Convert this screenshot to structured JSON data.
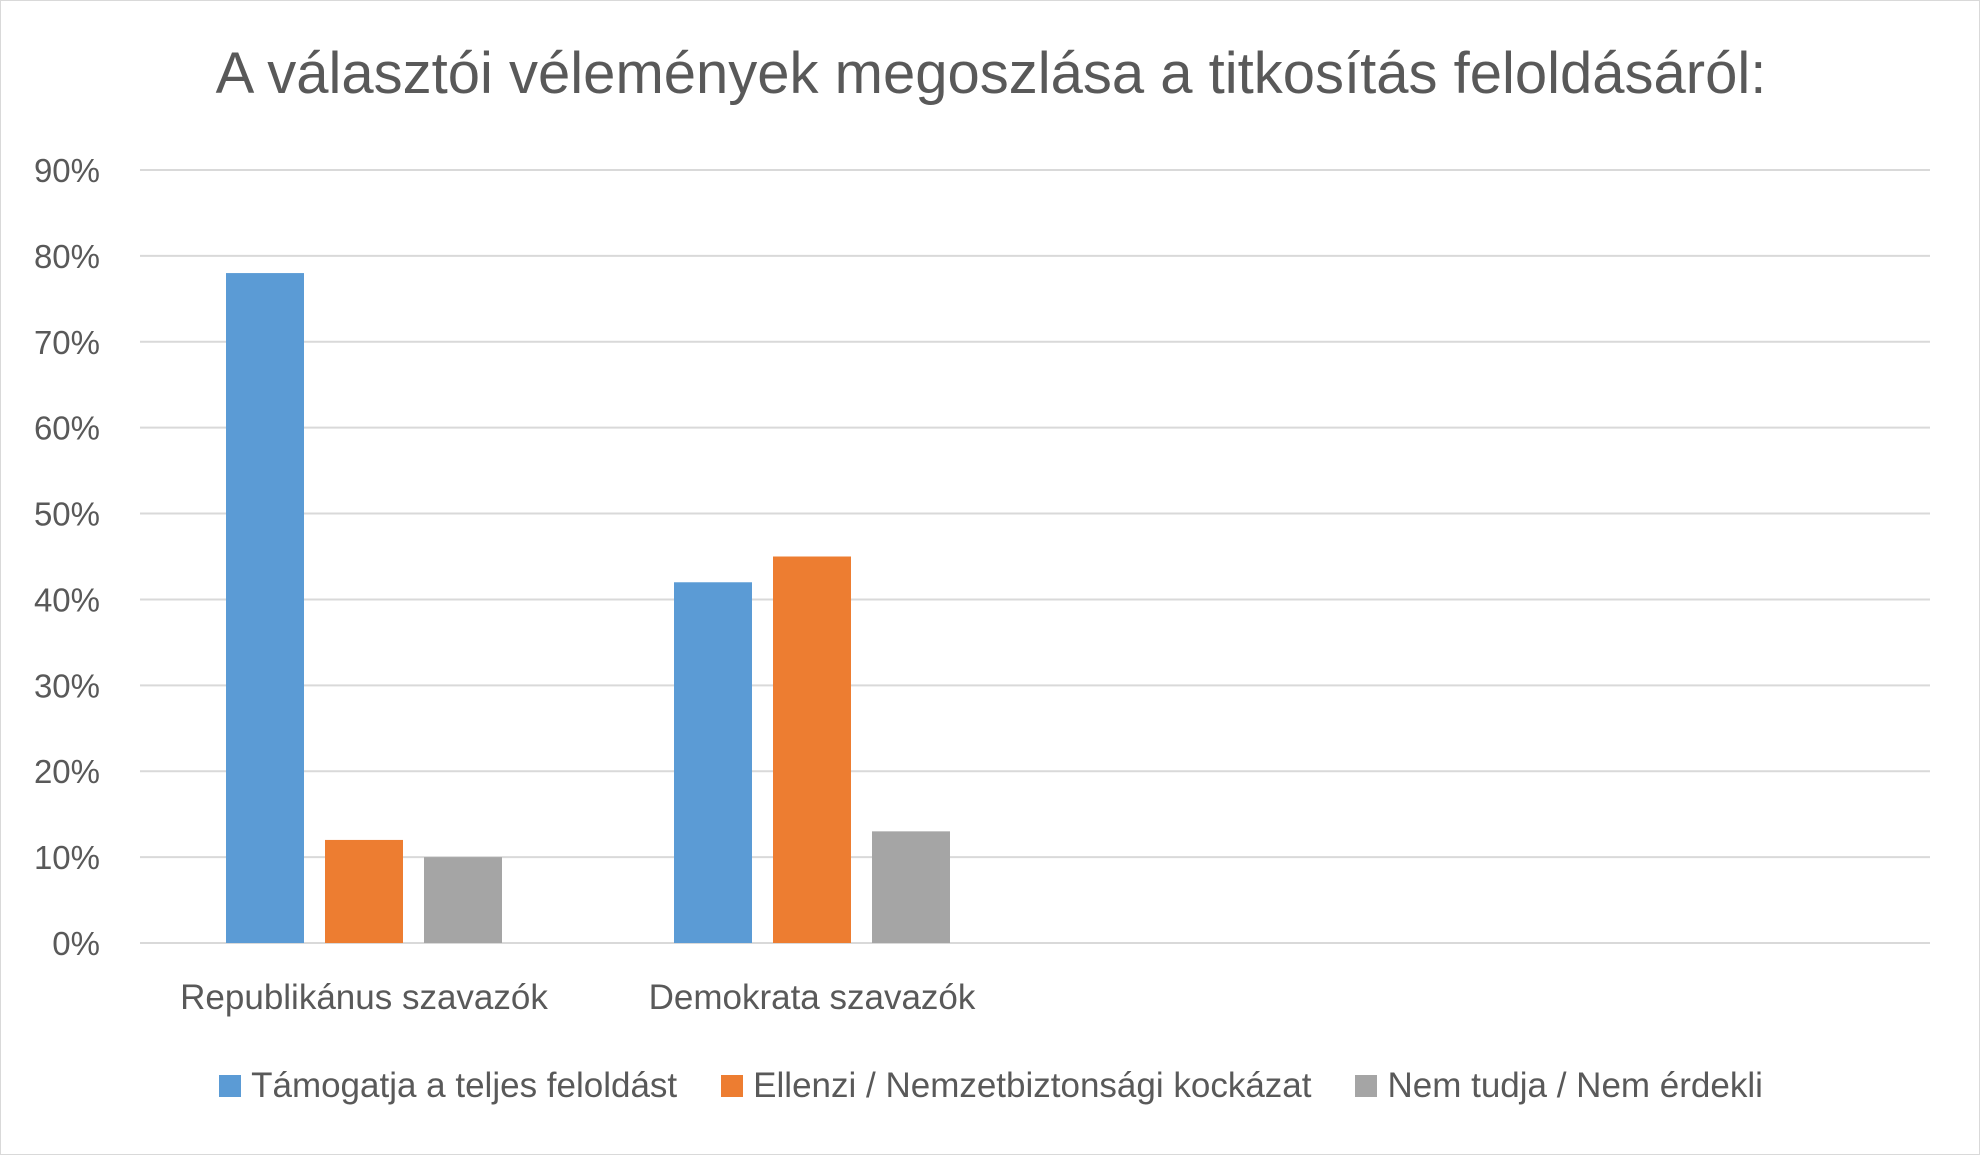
{
  "chart_data": {
    "type": "bar",
    "title": "A választói vélemények megoszlása a titkosítás feloldásáról:",
    "categories": [
      "Republikánus szavazók",
      "Demokrata szavazók"
    ],
    "series": [
      {
        "name": "Támogatja a teljes feloldást",
        "values": [
          78,
          42
        ],
        "color": "#5b9bd5"
      },
      {
        "name": "Ellenzi / Nemzetbiztonsági kockázat",
        "values": [
          12,
          45
        ],
        "color": "#ed7d31"
      },
      {
        "name": "Nem tudja / Nem érdekli",
        "values": [
          10,
          13
        ],
        "color": "#a5a5a5"
      }
    ],
    "y_ticks": [
      "0%",
      "10%",
      "20%",
      "30%",
      "40%",
      "50%",
      "60%",
      "70%",
      "80%",
      "90%"
    ],
    "ylim": [
      0,
      90
    ],
    "grid": true,
    "legend_position": "bottom"
  }
}
